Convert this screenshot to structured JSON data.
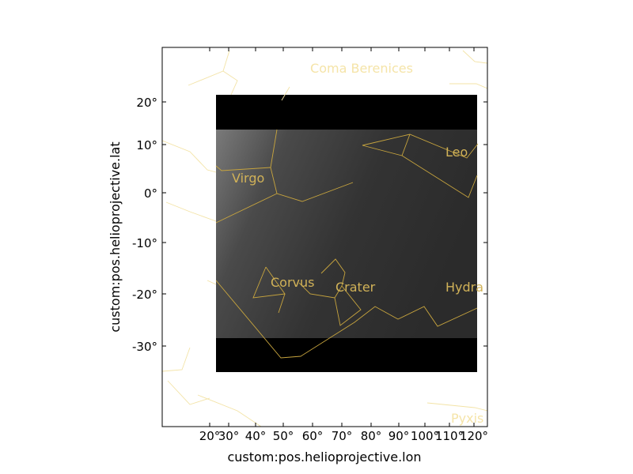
{
  "chart_data": {
    "type": "image",
    "xlabel": "custom:pos.helioprojective.lon",
    "ylabel": "custom:pos.helioprojective.lat",
    "x_ticks": [
      "20°",
      "30°",
      "40°",
      "50°",
      "60°",
      "70°",
      "80°",
      "90°",
      "100°",
      "110°",
      "120°"
    ],
    "y_ticks": [
      "20°",
      "10°",
      "0°",
      "-10°",
      "-20°",
      "-30°"
    ],
    "constellations": [
      "Coma Berenices",
      "Virgo",
      "Leo",
      "Corvus",
      "Crater",
      "Hydra",
      "Pyxis"
    ],
    "colors": {
      "line": "#c8a53e",
      "line_faint": "#f3e3a6",
      "label": "#d1b258",
      "label_faint": "#f5e4a8",
      "image_bg": "#000000",
      "image_gray": "#3a3a3a"
    }
  }
}
